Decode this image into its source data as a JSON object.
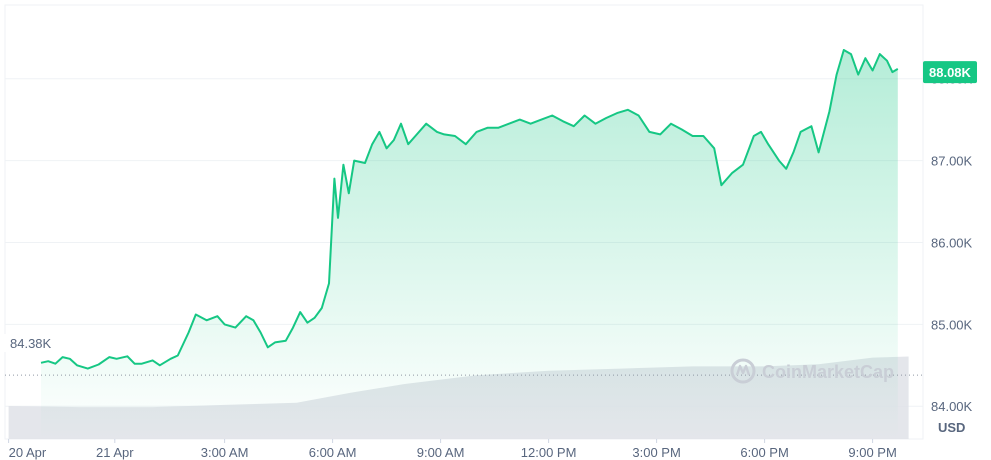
{
  "chart_data": {
    "type": "area",
    "unit": "USD",
    "watermark": "CoinMarketCap",
    "current_price_label": "88.08K",
    "open_price_label": "84.38K",
    "open_price": 84.38,
    "current_price": 88.08,
    "ylim": [
      83.6,
      88.9
    ],
    "y_ticks": [
      {
        "value": 84.0,
        "label": "84.00K"
      },
      {
        "value": 85.0,
        "label": "85.00K"
      },
      {
        "value": 86.0,
        "label": "86.00K"
      },
      {
        "value": 87.0,
        "label": "87.00K"
      },
      {
        "value": 88.0,
        "label": "88.00K"
      }
    ],
    "x_ticks": [
      {
        "t": 0.0,
        "label": "20 Apr"
      },
      {
        "t": 2.95,
        "label": "21 Apr"
      },
      {
        "t": 6.0,
        "label": "3:00 AM"
      },
      {
        "t": 9.0,
        "label": "6:00 AM"
      },
      {
        "t": 12.0,
        "label": "9:00 AM"
      },
      {
        "t": 15.0,
        "label": "12:00 PM"
      },
      {
        "t": 18.0,
        "label": "3:00 PM"
      },
      {
        "t": 21.0,
        "label": "6:00 PM"
      },
      {
        "t": 24.0,
        "label": "9:00 PM"
      }
    ],
    "xlim": [
      -0.1,
      25.4
    ],
    "price_series": {
      "values": [
        [
          0.9,
          84.53
        ],
        [
          1.1,
          84.55
        ],
        [
          1.3,
          84.52
        ],
        [
          1.5,
          84.6
        ],
        [
          1.7,
          84.58
        ],
        [
          1.9,
          84.5
        ],
        [
          2.2,
          84.46
        ],
        [
          2.5,
          84.51
        ],
        [
          2.8,
          84.6
        ],
        [
          3.0,
          84.58
        ],
        [
          3.3,
          84.61
        ],
        [
          3.5,
          84.52
        ],
        [
          3.7,
          84.52
        ],
        [
          4.0,
          84.56
        ],
        [
          4.2,
          84.5
        ],
        [
          4.5,
          84.58
        ],
        [
          4.7,
          84.62
        ],
        [
          5.0,
          84.9
        ],
        [
          5.2,
          85.12
        ],
        [
          5.5,
          85.05
        ],
        [
          5.8,
          85.1
        ],
        [
          6.0,
          85.0
        ],
        [
          6.3,
          84.96
        ],
        [
          6.6,
          85.1
        ],
        [
          6.8,
          85.05
        ],
        [
          7.0,
          84.9
        ],
        [
          7.2,
          84.72
        ],
        [
          7.4,
          84.78
        ],
        [
          7.7,
          84.8
        ],
        [
          7.9,
          84.96
        ],
        [
          8.1,
          85.15
        ],
        [
          8.3,
          85.02
        ],
        [
          8.5,
          85.08
        ],
        [
          8.7,
          85.2
        ],
        [
          8.9,
          85.5
        ],
        [
          9.05,
          86.78
        ],
        [
          9.15,
          86.3
        ],
        [
          9.3,
          86.95
        ],
        [
          9.45,
          86.6
        ],
        [
          9.6,
          87.0
        ],
        [
          9.9,
          86.97
        ],
        [
          10.1,
          87.2
        ],
        [
          10.3,
          87.35
        ],
        [
          10.5,
          87.15
        ],
        [
          10.7,
          87.25
        ],
        [
          10.9,
          87.45
        ],
        [
          11.1,
          87.2
        ],
        [
          11.3,
          87.3
        ],
        [
          11.6,
          87.45
        ],
        [
          11.9,
          87.35
        ],
        [
          12.1,
          87.32
        ],
        [
          12.4,
          87.3
        ],
        [
          12.7,
          87.2
        ],
        [
          13.0,
          87.35
        ],
        [
          13.3,
          87.4
        ],
        [
          13.6,
          87.4
        ],
        [
          13.9,
          87.45
        ],
        [
          14.2,
          87.5
        ],
        [
          14.5,
          87.45
        ],
        [
          14.8,
          87.5
        ],
        [
          15.1,
          87.55
        ],
        [
          15.4,
          87.48
        ],
        [
          15.7,
          87.42
        ],
        [
          16.0,
          87.55
        ],
        [
          16.3,
          87.45
        ],
        [
          16.6,
          87.52
        ],
        [
          16.9,
          87.58
        ],
        [
          17.2,
          87.62
        ],
        [
          17.5,
          87.55
        ],
        [
          17.8,
          87.35
        ],
        [
          18.1,
          87.32
        ],
        [
          18.4,
          87.45
        ],
        [
          18.7,
          87.38
        ],
        [
          19.0,
          87.3
        ],
        [
          19.3,
          87.3
        ],
        [
          19.6,
          87.15
        ],
        [
          19.8,
          86.7
        ],
        [
          20.1,
          86.85
        ],
        [
          20.4,
          86.95
        ],
        [
          20.7,
          87.3
        ],
        [
          20.9,
          87.35
        ],
        [
          21.1,
          87.2
        ],
        [
          21.4,
          87.0
        ],
        [
          21.6,
          86.9
        ],
        [
          21.8,
          87.1
        ],
        [
          22.0,
          87.35
        ],
        [
          22.3,
          87.42
        ],
        [
          22.5,
          87.1
        ],
        [
          22.8,
          87.6
        ],
        [
          23.0,
          88.05
        ],
        [
          23.2,
          88.35
        ],
        [
          23.4,
          88.3
        ],
        [
          23.6,
          88.05
        ],
        [
          23.8,
          88.25
        ],
        [
          24.0,
          88.1
        ],
        [
          24.2,
          88.3
        ],
        [
          24.4,
          88.22
        ],
        [
          24.55,
          88.08
        ],
        [
          24.7,
          88.12
        ]
      ]
    },
    "volume_series": {
      "values": [
        [
          0.0,
          0.3
        ],
        [
          2.0,
          0.29
        ],
        [
          4.0,
          0.29
        ],
        [
          6.0,
          0.31
        ],
        [
          8.0,
          0.33
        ],
        [
          9.5,
          0.42
        ],
        [
          11.0,
          0.5
        ],
        [
          13.0,
          0.58
        ],
        [
          15.0,
          0.62
        ],
        [
          17.0,
          0.64
        ],
        [
          19.0,
          0.66
        ],
        [
          21.0,
          0.66
        ],
        [
          22.5,
          0.68
        ],
        [
          24.0,
          0.74
        ],
        [
          25.0,
          0.75
        ]
      ]
    },
    "grid": true,
    "price_color": "#16c784",
    "volume_color": "#dfe2e7",
    "grid_color": "#eff2f5",
    "open_line_color": "#8f97a3",
    "tag_color": "#16c784"
  }
}
